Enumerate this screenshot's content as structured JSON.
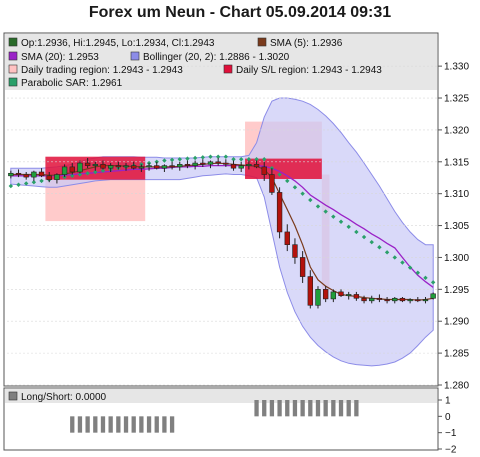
{
  "title": "Forex um Neun - Chart 05.09.2014 09:31",
  "colors": {
    "panel_bg": "#ffffff",
    "legend_bg": "#e6e6e6",
    "candle_up": "#1f9e3b",
    "candle_down": "#b3120c",
    "sma5": "#7a3a1c",
    "sma20": "#9a22c7",
    "bollinger_fill": "#c9c9f7",
    "bollinger_line": "#8c8ce8",
    "daily_region": "#ffc2c2",
    "sl_region": "#e0103a",
    "sar": "#2aa06a",
    "longshort": "#808080"
  },
  "legend": [
    {
      "text": "Op:1.2936, Hi:1.2945, Lo:1.2934, Cl:1.2943",
      "color": "#2a6b2a"
    },
    {
      "text": "SMA (5): 1.2936",
      "color": "#7a3a1c"
    },
    {
      "text": "SMA (20): 1.2953",
      "color": "#9a22c7"
    },
    {
      "text": "Bollinger (20, 2): 1.2886 - 1.3020",
      "color": "#8c8ce8"
    },
    {
      "text": "Daily trading region: 1.2943 - 1.2943",
      "color": "#ffc2c2"
    },
    {
      "text": "Daily S/L region: 1.2943 - 1.2943",
      "color": "#e0103a"
    },
    {
      "text": "Parabolic SAR: 1.2961",
      "color": "#2aa06a"
    }
  ],
  "longshort_label": "Long/Short: 0.0000",
  "chart_data": [
    {
      "type": "candlestick",
      "ylim": [
        1.28,
        1.333
      ],
      "yticks": [
        "1.330",
        "1.325",
        "1.320",
        "1.315",
        "1.310",
        "1.305",
        "1.300",
        "1.295",
        "1.290",
        "1.285",
        "1.280"
      ],
      "ohlc": [
        [
          1.3128,
          1.3136,
          1.3124,
          1.3132
        ],
        [
          1.3132,
          1.3138,
          1.3126,
          1.313
        ],
        [
          1.313,
          1.3134,
          1.3122,
          1.3126
        ],
        [
          1.3126,
          1.3136,
          1.312,
          1.3134
        ],
        [
          1.3134,
          1.314,
          1.3126,
          1.3128
        ],
        [
          1.3128,
          1.3134,
          1.3118,
          1.3122
        ],
        [
          1.3122,
          1.3132,
          1.3116,
          1.313
        ],
        [
          1.313,
          1.3146,
          1.3126,
          1.3142
        ],
        [
          1.3142,
          1.3148,
          1.313,
          1.3134
        ],
        [
          1.3134,
          1.3152,
          1.3132,
          1.3148
        ],
        [
          1.3148,
          1.3156,
          1.314,
          1.3144
        ],
        [
          1.3144,
          1.315,
          1.3136,
          1.3146
        ],
        [
          1.3146,
          1.3152,
          1.3138,
          1.314
        ],
        [
          1.314,
          1.3148,
          1.3134,
          1.3144
        ],
        [
          1.3144,
          1.315,
          1.3138,
          1.3142
        ],
        [
          1.3142,
          1.3148,
          1.3136,
          1.3144
        ],
        [
          1.3144,
          1.315,
          1.3138,
          1.314
        ],
        [
          1.314,
          1.3146,
          1.3134,
          1.3142
        ],
        [
          1.3142,
          1.3148,
          1.3136,
          1.3144
        ],
        [
          1.3144,
          1.315,
          1.3138,
          1.314
        ],
        [
          1.314,
          1.3146,
          1.3134,
          1.3144
        ],
        [
          1.3144,
          1.315,
          1.3138,
          1.3142
        ],
        [
          1.3142,
          1.315,
          1.3136,
          1.3146
        ],
        [
          1.3146,
          1.3152,
          1.314,
          1.3144
        ],
        [
          1.3144,
          1.3152,
          1.3138,
          1.3148
        ],
        [
          1.3148,
          1.3154,
          1.3142,
          1.3146
        ],
        [
          1.3146,
          1.3152,
          1.314,
          1.315
        ],
        [
          1.315,
          1.3156,
          1.3144,
          1.3148
        ],
        [
          1.3148,
          1.3154,
          1.3142,
          1.3146
        ],
        [
          1.3146,
          1.3152,
          1.3136,
          1.314
        ],
        [
          1.314,
          1.315,
          1.3134,
          1.3144
        ],
        [
          1.3144,
          1.3152,
          1.3138,
          1.3146
        ],
        [
          1.3146,
          1.3152,
          1.314,
          1.3142
        ],
        [
          1.3142,
          1.315,
          1.312,
          1.313
        ],
        [
          1.313,
          1.314,
          1.3098,
          1.3102
        ],
        [
          1.3102,
          1.311,
          1.303,
          1.304
        ],
        [
          1.304,
          1.3052,
          1.301,
          1.302
        ],
        [
          1.302,
          1.303,
          1.299,
          1.3
        ],
        [
          1.3,
          1.301,
          1.296,
          1.297
        ],
        [
          1.297,
          1.298,
          1.292,
          1.2925
        ],
        [
          1.2925,
          1.2955,
          1.292,
          1.295
        ],
        [
          1.295,
          1.2955,
          1.293,
          1.2935
        ],
        [
          1.2935,
          1.295,
          1.293,
          1.2946
        ],
        [
          1.2946,
          1.295,
          1.2938,
          1.294
        ],
        [
          1.294,
          1.2946,
          1.2934,
          1.2942
        ],
        [
          1.2942,
          1.2946,
          1.2932,
          1.2936
        ],
        [
          1.2936,
          1.294,
          1.2928,
          1.2932
        ],
        [
          1.2932,
          1.294,
          1.2928,
          1.2936
        ],
        [
          1.2936,
          1.2942,
          1.293,
          1.2934
        ],
        [
          1.2934,
          1.2938,
          1.2928,
          1.2932
        ],
        [
          1.2932,
          1.2938,
          1.2928,
          1.2936
        ],
        [
          1.2936,
          1.2938,
          1.293,
          1.2932
        ],
        [
          1.2932,
          1.2936,
          1.2928,
          1.2934
        ],
        [
          1.2934,
          1.2938,
          1.293,
          1.2932
        ],
        [
          1.2932,
          1.2938,
          1.2928,
          1.2934
        ],
        [
          1.2936,
          1.2945,
          1.2934,
          1.2943
        ]
      ],
      "sma5": [
        1.313,
        1.313,
        1.313,
        1.313,
        1.313,
        1.3129,
        1.3129,
        1.3131,
        1.3133,
        1.3136,
        1.3139,
        1.3142,
        1.3144,
        1.3144,
        1.3144,
        1.3143,
        1.3143,
        1.3142,
        1.3142,
        1.3142,
        1.3142,
        1.3142,
        1.3143,
        1.3144,
        1.3145,
        1.3146,
        1.3147,
        1.3148,
        1.3147,
        1.3146,
        1.3145,
        1.3144,
        1.3143,
        1.3138,
        1.3125,
        1.31,
        1.3075,
        1.305,
        1.302,
        1.2985,
        1.2965,
        1.2955,
        1.2948,
        1.2942,
        1.294,
        1.2939,
        1.2937,
        1.2936,
        1.2935,
        1.2934,
        1.2934,
        1.2934,
        1.2934,
        1.2933,
        1.2934,
        1.2936
      ],
      "sma20": [
        1.3128,
        1.3128,
        1.3128,
        1.3128,
        1.3128,
        1.3128,
        1.3128,
        1.3129,
        1.313,
        1.3131,
        1.3132,
        1.3133,
        1.3134,
        1.3135,
        1.3136,
        1.3137,
        1.3138,
        1.3138,
        1.3139,
        1.314,
        1.314,
        1.3141,
        1.3142,
        1.3142,
        1.3143,
        1.3143,
        1.3144,
        1.3144,
        1.3144,
        1.3144,
        1.3144,
        1.3144,
        1.3144,
        1.3143,
        1.314,
        1.3135,
        1.3128,
        1.312,
        1.311,
        1.3098,
        1.309,
        1.3082,
        1.3075,
        1.3067,
        1.306,
        1.3052,
        1.3045,
        1.3037,
        1.303,
        1.3022,
        1.3015,
        1.3,
        1.2985,
        1.2972,
        1.2962,
        1.2953
      ],
      "bollinger_upper": [
        1.314,
        1.314,
        1.314,
        1.314,
        1.314,
        1.3141,
        1.3142,
        1.3144,
        1.3146,
        1.315,
        1.3154,
        1.3156,
        1.3158,
        1.3158,
        1.3158,
        1.3158,
        1.3158,
        1.3157,
        1.3157,
        1.3157,
        1.3156,
        1.3156,
        1.3156,
        1.3156,
        1.3156,
        1.3157,
        1.3158,
        1.3158,
        1.3158,
        1.3158,
        1.3158,
        1.316,
        1.318,
        1.322,
        1.3245,
        1.325,
        1.325,
        1.3248,
        1.3245,
        1.324,
        1.3232,
        1.3222,
        1.321,
        1.3196,
        1.318,
        1.3165,
        1.3148,
        1.313,
        1.3112,
        1.3092,
        1.3072,
        1.3055,
        1.304,
        1.3028,
        1.302,
        1.302
      ],
      "bollinger_lower": [
        1.3115,
        1.3114,
        1.3113,
        1.3112,
        1.3111,
        1.311,
        1.311,
        1.3112,
        1.3114,
        1.3116,
        1.3118,
        1.312,
        1.3121,
        1.3122,
        1.3122,
        1.3122,
        1.3122,
        1.3122,
        1.3122,
        1.3122,
        1.3122,
        1.3122,
        1.3122,
        1.3124,
        1.3126,
        1.3128,
        1.3129,
        1.313,
        1.3131,
        1.313,
        1.313,
        1.3128,
        1.3125,
        1.3095,
        1.304,
        1.2985,
        1.2945,
        1.2915,
        1.2892,
        1.2875,
        1.2862,
        1.2852,
        1.2844,
        1.2838,
        1.2834,
        1.2832,
        1.2831,
        1.283,
        1.2831,
        1.2833,
        1.2836,
        1.2842,
        1.285,
        1.2862,
        1.2875,
        1.2886
      ],
      "sar": [
        1.3112,
        1.3114,
        1.3116,
        1.3118,
        1.312,
        1.3122,
        1.3124,
        1.3126,
        1.3128,
        1.313,
        1.3132,
        1.3134,
        1.3136,
        1.3138,
        1.314,
        1.3142,
        1.3144,
        1.3146,
        1.3148,
        1.315,
        1.3152,
        1.3153,
        1.3154,
        1.3155,
        1.3156,
        1.3157,
        1.3158,
        1.3158,
        1.3158,
        1.3154,
        1.3154,
        1.3154,
        1.3154,
        1.3154,
        1.314,
        1.313,
        1.312,
        1.311,
        1.31,
        1.309,
        1.308,
        1.3072,
        1.3064,
        1.3056,
        1.3048,
        1.304,
        1.3032,
        1.3024,
        1.3016,
        1.3008,
        1.3,
        1.2992,
        1.2984,
        1.2976,
        1.2968,
        1.2961
      ],
      "daily_trading_regions": [
        {
          "from_bar": 5,
          "to_bar": 18,
          "ylow": 1.3057,
          "yhigh": 1.314
        },
        {
          "from_bar": 31,
          "to_bar": 41,
          "ylow": 1.3125,
          "yhigh": 1.3213
        },
        {
          "from_bar": 41,
          "to_bar": 42,
          "ylow": 1.295,
          "yhigh": 1.313
        }
      ],
      "daily_sl_regions": [
        {
          "from_bar": 5,
          "to_bar": 18,
          "ylow": 1.3122,
          "yhigh": 1.3158
        },
        {
          "from_bar": 31,
          "to_bar": 41,
          "ylow": 1.3123,
          "yhigh": 1.3155
        }
      ]
    },
    {
      "type": "bar",
      "label": "Long/Short: 0.0000",
      "ylim": [
        -2,
        1
      ],
      "yticks": [
        "1",
        "0",
        "−1",
        "−2"
      ],
      "values": [
        0,
        0,
        0,
        0,
        0,
        0,
        0,
        0,
        -1,
        -1,
        -1,
        -1,
        -1,
        -1,
        -1,
        -1,
        -1,
        -1,
        -1,
        -1,
        -1,
        -1,
        0,
        0,
        0,
        0,
        0,
        0,
        0,
        0,
        0,
        0,
        1,
        1,
        1,
        1,
        1,
        1,
        1,
        1,
        1,
        1,
        1,
        1,
        1,
        1,
        0,
        0,
        0,
        0,
        0,
        0,
        0,
        0,
        0,
        0
      ]
    }
  ]
}
